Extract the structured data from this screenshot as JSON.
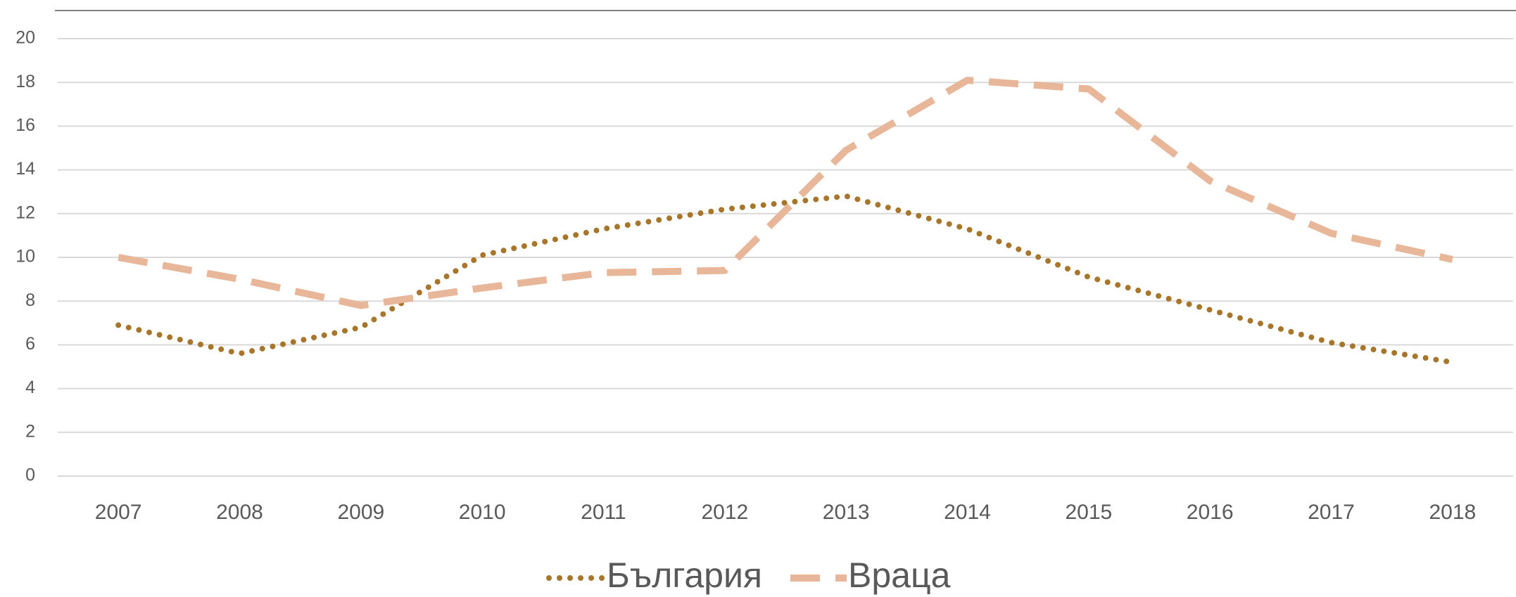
{
  "chart_data": {
    "type": "line",
    "categories": [
      "2007",
      "2008",
      "2009",
      "2010",
      "2011",
      "2012",
      "2013",
      "2014",
      "2015",
      "2016",
      "2017",
      "2018"
    ],
    "series": [
      {
        "name": "България",
        "color": "#a8762b",
        "style": "dotted",
        "values": [
          6.9,
          5.6,
          6.8,
          10.1,
          11.3,
          12.2,
          12.8,
          11.3,
          9.1,
          7.6,
          6.1,
          5.2
        ]
      },
      {
        "name": "Враца",
        "color": "#e8b79a",
        "style": "dashed",
        "values": [
          10.0,
          9.0,
          7.8,
          8.6,
          9.3,
          9.4,
          14.9,
          18.1,
          17.7,
          13.5,
          11.1,
          9.9
        ]
      }
    ],
    "ylim": [
      0,
      20
    ],
    "yticks": [
      0,
      2,
      4,
      6,
      8,
      10,
      12,
      14,
      16,
      18,
      20
    ],
    "grid": true,
    "legend": "bottom"
  }
}
